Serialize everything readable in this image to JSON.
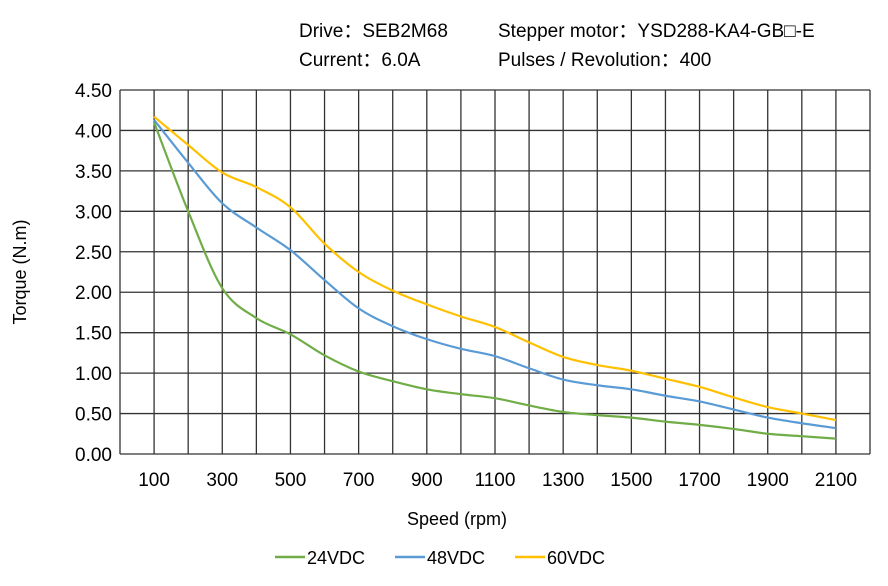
{
  "header": {
    "drive": "Drive：SEB2M68",
    "motor": "Stepper  motor：YSD288-KA4-GB□-E",
    "current": "Current：6.0A",
    "pulses": "Pulses / Revolution：400"
  },
  "chart_data": {
    "type": "line",
    "title": "",
    "xlabel": "Speed  (rpm)",
    "ylabel": "Torque (N.m)",
    "xlim": [
      0,
      2200
    ],
    "ylim": [
      0,
      4.5
    ],
    "grid": true,
    "legend": "bottom",
    "x_ticks": [
      100,
      300,
      500,
      700,
      900,
      1100,
      1300,
      1500,
      1700,
      1900,
      2100
    ],
    "y_ticks": [
      "0.00",
      "0.50",
      "1.00",
      "1.50",
      "2.00",
      "2.50",
      "3.00",
      "3.50",
      "4.00",
      "4.50"
    ],
    "x": [
      100,
      200,
      300,
      400,
      500,
      600,
      700,
      800,
      900,
      1000,
      1100,
      1200,
      1300,
      1400,
      1500,
      1600,
      1700,
      1800,
      1900,
      2000,
      2100
    ],
    "series": [
      {
        "name": "24VDC",
        "color": "#70ad47",
        "values": [
          4.1,
          3.0,
          2.05,
          1.68,
          1.48,
          1.22,
          1.02,
          0.9,
          0.8,
          0.74,
          0.69,
          0.6,
          0.52,
          0.48,
          0.45,
          0.4,
          0.36,
          0.31,
          0.25,
          0.22,
          0.19
        ]
      },
      {
        "name": "48VDC",
        "color": "#5b9bd5",
        "values": [
          4.13,
          3.6,
          3.1,
          2.8,
          2.52,
          2.15,
          1.8,
          1.58,
          1.42,
          1.3,
          1.21,
          1.06,
          0.92,
          0.85,
          0.8,
          0.72,
          0.65,
          0.55,
          0.45,
          0.38,
          0.32
        ]
      },
      {
        "name": "60VDC",
        "color": "#ffc000",
        "values": [
          4.17,
          3.82,
          3.48,
          3.3,
          3.05,
          2.6,
          2.25,
          2.02,
          1.85,
          1.7,
          1.57,
          1.38,
          1.2,
          1.1,
          1.03,
          0.93,
          0.83,
          0.7,
          0.58,
          0.5,
          0.42
        ]
      }
    ]
  }
}
